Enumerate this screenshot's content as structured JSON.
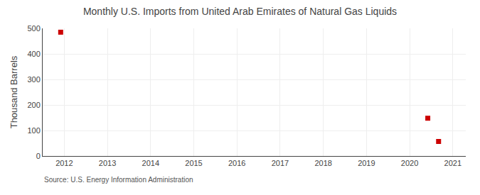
{
  "chart_data": {
    "type": "scatter",
    "title": "Monthly U.S. Imports from United Arab Emirates of Natural Gas Liquids",
    "ylabel": "Thousand Barrels",
    "source": "Source: U.S. Energy Information Administration",
    "x": [
      2011.917,
      2020.42,
      2020.67
    ],
    "values": [
      485,
      148,
      57
    ],
    "color": "#cc0000",
    "marker": "square",
    "xlim": [
      2011.5,
      2021.3
    ],
    "xticks": [
      2012,
      2013,
      2014,
      2015,
      2016,
      2017,
      2018,
      2019,
      2020,
      2021
    ],
    "ylim": [
      0,
      500
    ],
    "yticks": [
      0,
      100,
      200,
      300,
      400,
      500
    ],
    "grid": true
  }
}
